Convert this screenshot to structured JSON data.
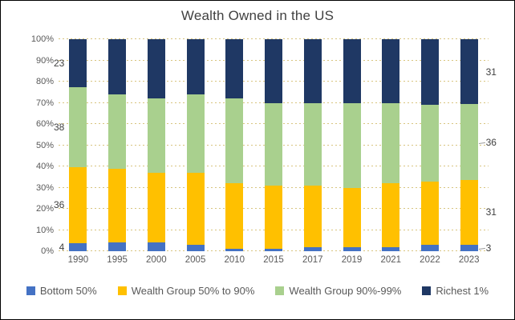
{
  "title": "Wealth Owned in the US",
  "chart_data": {
    "type": "bar",
    "stacked": true,
    "title": "Wealth Owned in the US",
    "xlabel": "",
    "ylabel": "",
    "ylim": [
      0,
      100
    ],
    "grid": "horizontal-dotted",
    "grid_color": "#d8c57f",
    "legend_position": "bottom",
    "categories": [
      "1990",
      "1995",
      "2000",
      "2005",
      "2010",
      "2015",
      "2017",
      "2019",
      "2021",
      "2022",
      "2023"
    ],
    "ytick_labels": [
      "0%",
      "10%",
      "20%",
      "30%",
      "40%",
      "50%",
      "60%",
      "70%",
      "80%",
      "90%",
      "100%"
    ],
    "series": [
      {
        "name": "Bottom 50%",
        "color": "#4472C4",
        "values": [
          4,
          4,
          4,
          3,
          1,
          1,
          2,
          2,
          2,
          3,
          3
        ]
      },
      {
        "name": "Wealth Group 50% to 90%",
        "color": "#FFC000",
        "values": [
          36,
          35,
          33,
          34,
          31,
          30,
          29,
          28,
          30,
          30,
          31
        ]
      },
      {
        "name": "Wealth Group 90%-99%",
        "color": "#A9D08E",
        "values": [
          38,
          35,
          35,
          37,
          40,
          39,
          39,
          40,
          38,
          36,
          36
        ]
      },
      {
        "name": "Richest 1%",
        "color": "#1F3864",
        "values": [
          23,
          26,
          28,
          26,
          28,
          30,
          30,
          30,
          30,
          31,
          31
        ]
      }
    ],
    "annotations": {
      "first_bar_labels": [
        {
          "text": "4"
        },
        {
          "text": "36"
        },
        {
          "text": "38"
        },
        {
          "text": "23"
        }
      ],
      "last_bar_labels": [
        {
          "text": "3",
          "leader": true
        },
        {
          "text": "31",
          "leader": false
        },
        {
          "text": "36",
          "leader": true
        },
        {
          "text": "31",
          "leader": false
        }
      ]
    },
    "text_colors": {
      "axis": "#595959",
      "labels": "#404040",
      "title": "#404040"
    }
  }
}
